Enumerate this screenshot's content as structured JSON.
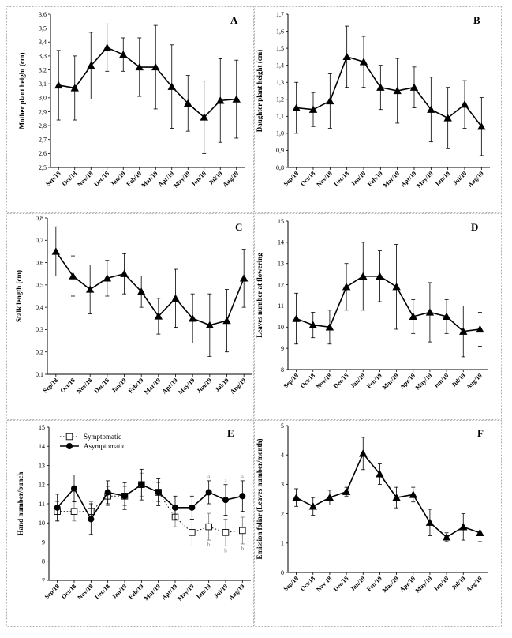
{
  "months": [
    "Sep/18",
    "Oct/18",
    "Nov/18",
    "Dec/18",
    "Jan/19",
    "Feb/19",
    "Mar/19",
    "Apr/19",
    "May/19",
    "Jun/19",
    "Jul/19",
    "Aug/19"
  ],
  "chart_data": [
    {
      "id": "A",
      "type": "line",
      "letter": "A",
      "ylabel": "Mother plant height (cm)",
      "ylim": [
        2.5,
        3.6
      ],
      "yticks": [
        2.5,
        2.6,
        2.7,
        2.8,
        2.9,
        3.0,
        3.1,
        3.2,
        3.3,
        3.4,
        3.5,
        3.6
      ],
      "decimals": 1,
      "comma": true,
      "categories": [
        "Sep/18",
        "Oct/18",
        "Nov/18",
        "Dec/18",
        "Jan/19",
        "Feb/19",
        "Mar/19",
        "Apr/19",
        "May/19",
        "Jun/19",
        "Jul/19",
        "Aug/19"
      ],
      "series": [
        {
          "marker": "triangle",
          "values": [
            3.09,
            3.07,
            3.23,
            3.36,
            3.31,
            3.22,
            3.22,
            3.08,
            2.96,
            2.86,
            2.98,
            2.99
          ],
          "err": [
            0.25,
            0.23,
            0.24,
            0.17,
            0.12,
            0.21,
            0.3,
            0.3,
            0.2,
            0.26,
            0.3,
            0.28
          ]
        }
      ]
    },
    {
      "id": "B",
      "type": "line",
      "letter": "B",
      "ylabel": "Daughter plant height (cm)",
      "ylim": [
        0.8,
        1.7
      ],
      "yticks": [
        0.8,
        0.9,
        1.0,
        1.1,
        1.2,
        1.3,
        1.4,
        1.5,
        1.6,
        1.7
      ],
      "decimals": 1,
      "comma": true,
      "categories": [
        "Sep/18",
        "Oct/18",
        "Nov/18",
        "Dec/18",
        "Jan/19",
        "Feb/19",
        "Mar/19",
        "Apr/19",
        "May/19",
        "Jun/19",
        "Jul/19",
        "Aug/19"
      ],
      "series": [
        {
          "marker": "triangle",
          "values": [
            1.15,
            1.14,
            1.19,
            1.45,
            1.42,
            1.27,
            1.25,
            1.27,
            1.14,
            1.09,
            1.17,
            1.04
          ],
          "err": [
            0.15,
            0.1,
            0.16,
            0.18,
            0.15,
            0.13,
            0.19,
            0.12,
            0.19,
            0.18,
            0.14,
            0.17
          ]
        }
      ]
    },
    {
      "id": "C",
      "type": "line",
      "letter": "C",
      "ylabel": "Stalk length (cm)",
      "ylim": [
        0.1,
        0.8
      ],
      "yticks": [
        0.1,
        0.2,
        0.3,
        0.4,
        0.5,
        0.6,
        0.7,
        0.8
      ],
      "decimals": 1,
      "comma": true,
      "categories": [
        "Sep/18",
        "Oct/18",
        "Nov/18",
        "Dec/18",
        "Jan/19",
        "Feb/19",
        "Mar/19",
        "Apr/19",
        "May/19",
        "Jun/19",
        "Jul/19",
        "Aug/19"
      ],
      "series": [
        {
          "marker": "triangle",
          "values": [
            0.65,
            0.54,
            0.48,
            0.53,
            0.55,
            0.47,
            0.36,
            0.44,
            0.35,
            0.32,
            0.34,
            0.53
          ],
          "err": [
            0.11,
            0.09,
            0.11,
            0.08,
            0.09,
            0.07,
            0.08,
            0.13,
            0.11,
            0.14,
            0.14,
            0.13
          ]
        }
      ]
    },
    {
      "id": "D",
      "type": "line",
      "letter": "D",
      "ylabel": "Leaves number at flowering",
      "ylim": [
        8,
        15
      ],
      "yticks": [
        8,
        9,
        10,
        11,
        12,
        13,
        14,
        15
      ],
      "decimals": 0,
      "comma": false,
      "categories": [
        "Sep/18",
        "Oct/18",
        "Nov/18",
        "Dec/18",
        "Jan/19",
        "Feb/19",
        "Mar/19",
        "Apr/19",
        "May/19",
        "Jun/19",
        "Jul/19",
        "Aug/19"
      ],
      "series": [
        {
          "marker": "triangle",
          "values": [
            10.4,
            10.1,
            10.0,
            11.9,
            12.4,
            12.4,
            11.9,
            10.5,
            10.7,
            10.5,
            9.8,
            9.9
          ],
          "err": [
            1.2,
            0.6,
            0.8,
            1.1,
            1.6,
            1.2,
            2.0,
            0.8,
            1.4,
            0.8,
            1.2,
            0.8
          ]
        }
      ]
    },
    {
      "id": "E",
      "type": "line",
      "letter": "E",
      "ylabel": "Hand number/bunch",
      "ylim": [
        7,
        15
      ],
      "yticks": [
        7,
        8,
        9,
        10,
        11,
        12,
        13,
        14,
        15
      ],
      "decimals": 0,
      "comma": false,
      "categories": [
        "Sep/18",
        "Oct/18",
        "Nov/18",
        "Dec/18",
        "Jan/19",
        "Feb/19",
        "Mar/19",
        "Apr/19",
        "May/19",
        "Jun/19",
        "Jul/19",
        "Aug/19"
      ],
      "legend": [
        "Symptomatic",
        "Asymptomatic"
      ],
      "series": [
        {
          "name": "Symptomatic",
          "marker": "square-open",
          "values": [
            10.6,
            10.6,
            10.6,
            11.4,
            11.4,
            12.0,
            11.6,
            10.3,
            9.5,
            9.8,
            9.5,
            9.6
          ],
          "err": [
            0.5,
            0.5,
            0.5,
            0.5,
            0.5,
            0.6,
            0.5,
            0.5,
            0.7,
            0.7,
            0.7,
            0.7
          ]
        },
        {
          "name": "Asymptomatic",
          "marker": "circle",
          "values": [
            10.8,
            11.8,
            10.2,
            11.6,
            11.4,
            12.0,
            11.6,
            10.8,
            10.8,
            11.6,
            11.2,
            11.4
          ],
          "err": [
            0.7,
            0.7,
            0.8,
            0.6,
            0.7,
            0.8,
            0.7,
            0.6,
            0.6,
            0.6,
            0.8,
            0.8
          ]
        }
      ],
      "annotations": [
        {
          "month": "Jun/19",
          "top": "a",
          "bottom": "b"
        },
        {
          "month": "Jul/19",
          "top": "a",
          "bottom": "b"
        },
        {
          "month": "Aug/19",
          "top": "a",
          "bottom": "b"
        }
      ]
    },
    {
      "id": "F",
      "type": "line",
      "letter": "F",
      "ylabel": "Emission foliar (Leaves number/month)",
      "ylim": [
        0,
        5
      ],
      "yticks": [
        0,
        1,
        2,
        3,
        4,
        5
      ],
      "decimals": 0,
      "comma": false,
      "categories": [
        "Sep/18",
        "Oct/18",
        "Nov 18",
        "Dec/18",
        "Jan/19",
        "Feb/19",
        "Mar/19",
        "Apr/19",
        "May/19",
        "Jun/19",
        "Jul/19",
        "Aug/19"
      ],
      "series": [
        {
          "marker": "triangle",
          "values": [
            2.55,
            2.25,
            2.55,
            2.75,
            4.05,
            3.35,
            2.55,
            2.65,
            1.7,
            1.2,
            1.55,
            1.35
          ],
          "err": [
            0.3,
            0.3,
            0.25,
            0.15,
            0.55,
            0.35,
            0.35,
            0.25,
            0.45,
            0.15,
            0.45,
            0.3
          ]
        }
      ]
    }
  ]
}
